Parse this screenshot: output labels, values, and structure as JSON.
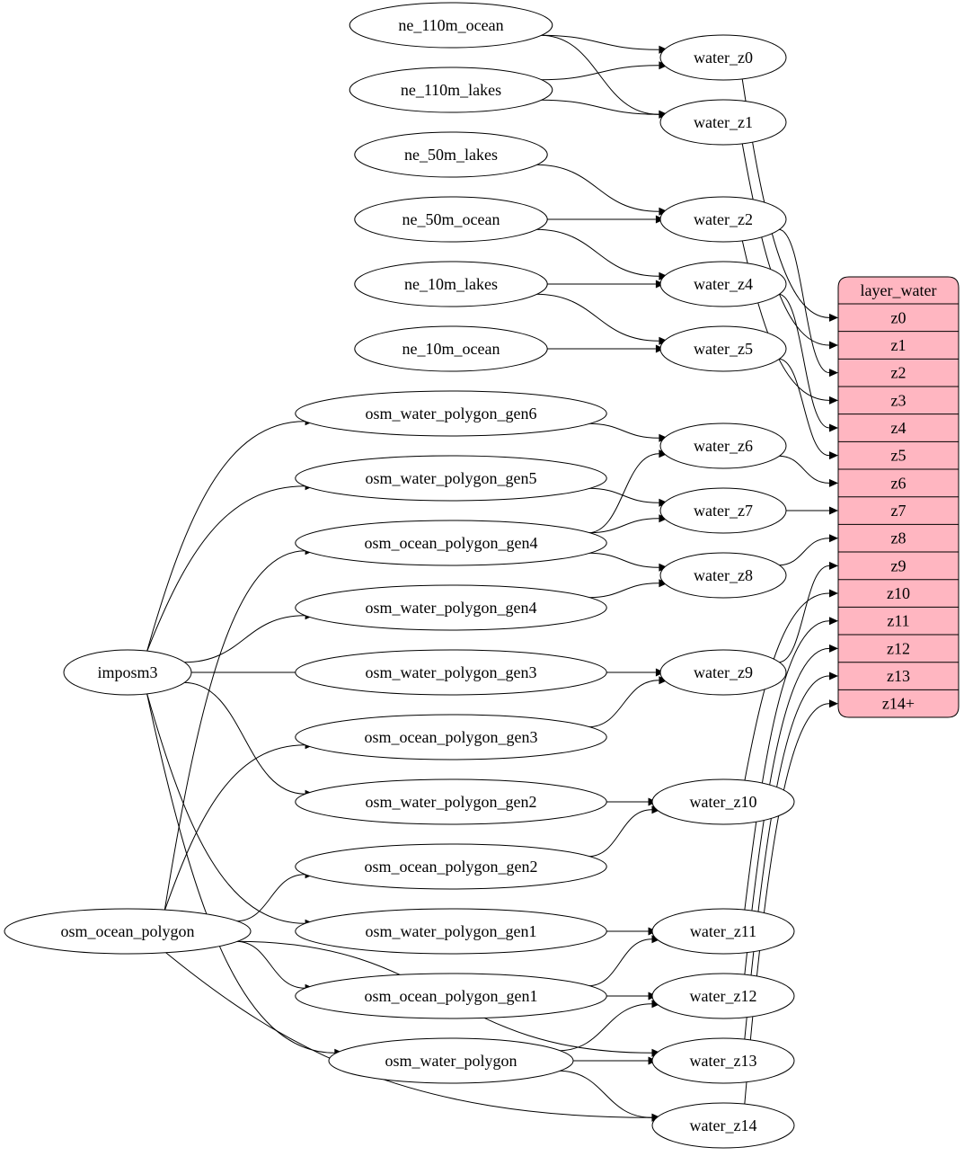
{
  "colors": {
    "record_fill": "#ffb6c1",
    "stroke": "#000000"
  },
  "sources": [
    "imposm3",
    "osm_ocean_polygon"
  ],
  "inputs": [
    "ne_110m_ocean",
    "ne_110m_lakes",
    "ne_50m_lakes",
    "ne_50m_ocean",
    "ne_10m_lakes",
    "ne_10m_ocean",
    "osm_water_polygon_gen6",
    "osm_water_polygon_gen5",
    "osm_ocean_polygon_gen4",
    "osm_water_polygon_gen4",
    "osm_water_polygon_gen3",
    "osm_ocean_polygon_gen3",
    "osm_water_polygon_gen2",
    "osm_ocean_polygon_gen2",
    "osm_water_polygon_gen1",
    "osm_ocean_polygon_gen1",
    "osm_water_polygon"
  ],
  "zooms": [
    "water_z0",
    "water_z1",
    "water_z2",
    "water_z4",
    "water_z5",
    "water_z6",
    "water_z7",
    "water_z8",
    "water_z9",
    "water_z10",
    "water_z11",
    "water_z12",
    "water_z13",
    "water_z14"
  ],
  "layer": {
    "title": "layer_water",
    "ports": [
      "z0",
      "z1",
      "z2",
      "z3",
      "z4",
      "z5",
      "z6",
      "z7",
      "z8",
      "z9",
      "z10",
      "z11",
      "z12",
      "z13",
      "z14+"
    ]
  },
  "edges": [
    [
      "ne_110m_ocean",
      "water_z0"
    ],
    [
      "ne_110m_ocean",
      "water_z1"
    ],
    [
      "ne_110m_lakes",
      "water_z0"
    ],
    [
      "ne_110m_lakes",
      "water_z1"
    ],
    [
      "ne_50m_lakes",
      "water_z2"
    ],
    [
      "ne_50m_ocean",
      "water_z2"
    ],
    [
      "ne_50m_ocean",
      "water_z4"
    ],
    [
      "ne_10m_lakes",
      "water_z4"
    ],
    [
      "ne_10m_lakes",
      "water_z5"
    ],
    [
      "ne_10m_ocean",
      "water_z5"
    ],
    [
      "osm_water_polygon_gen6",
      "water_z6"
    ],
    [
      "osm_water_polygon_gen5",
      "water_z7"
    ],
    [
      "osm_ocean_polygon_gen4",
      "water_z6"
    ],
    [
      "osm_ocean_polygon_gen4",
      "water_z7"
    ],
    [
      "osm_ocean_polygon_gen4",
      "water_z8"
    ],
    [
      "osm_water_polygon_gen4",
      "water_z8"
    ],
    [
      "osm_water_polygon_gen3",
      "water_z9"
    ],
    [
      "osm_ocean_polygon_gen3",
      "water_z9"
    ],
    [
      "osm_water_polygon_gen2",
      "water_z10"
    ],
    [
      "osm_ocean_polygon_gen2",
      "water_z10"
    ],
    [
      "osm_water_polygon_gen1",
      "water_z11"
    ],
    [
      "osm_ocean_polygon_gen1",
      "water_z11"
    ],
    [
      "osm_ocean_polygon_gen1",
      "water_z12"
    ],
    [
      "osm_water_polygon",
      "water_z12"
    ],
    [
      "osm_water_polygon",
      "water_z13"
    ],
    [
      "osm_water_polygon",
      "water_z14"
    ],
    [
      "imposm3",
      "osm_water_polygon_gen6"
    ],
    [
      "imposm3",
      "osm_water_polygon_gen5"
    ],
    [
      "imposm3",
      "osm_water_polygon_gen4"
    ],
    [
      "imposm3",
      "osm_water_polygon_gen3"
    ],
    [
      "imposm3",
      "osm_water_polygon_gen2"
    ],
    [
      "imposm3",
      "osm_water_polygon_gen1"
    ],
    [
      "imposm3",
      "osm_water_polygon"
    ],
    [
      "osm_ocean_polygon",
      "osm_ocean_polygon_gen4"
    ],
    [
      "osm_ocean_polygon",
      "osm_ocean_polygon_gen3"
    ],
    [
      "osm_ocean_polygon",
      "osm_ocean_polygon_gen2"
    ],
    [
      "osm_ocean_polygon",
      "osm_ocean_polygon_gen1"
    ],
    [
      "osm_ocean_polygon",
      "water_z13"
    ],
    [
      "osm_ocean_polygon",
      "water_z14"
    ],
    [
      "water_z0",
      "layer_water:z0"
    ],
    [
      "water_z1",
      "layer_water:z1"
    ],
    [
      "water_z2",
      "layer_water:z2"
    ],
    [
      "water_z2",
      "layer_water:z3"
    ],
    [
      "water_z4",
      "layer_water:z4"
    ],
    [
      "water_z5",
      "layer_water:z5"
    ],
    [
      "water_z6",
      "layer_water:z6"
    ],
    [
      "water_z7",
      "layer_water:z7"
    ],
    [
      "water_z8",
      "layer_water:z8"
    ],
    [
      "water_z9",
      "layer_water:z9"
    ],
    [
      "water_z10",
      "layer_water:z10"
    ],
    [
      "water_z11",
      "layer_water:z11"
    ],
    [
      "water_z12",
      "layer_water:z12"
    ],
    [
      "water_z13",
      "layer_water:z13"
    ],
    [
      "water_z14",
      "layer_water:z14+"
    ]
  ]
}
